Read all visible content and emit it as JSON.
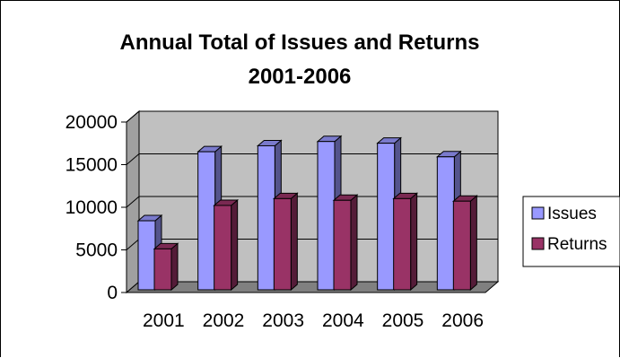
{
  "chart_data": {
    "type": "bar",
    "title": "Annual Total of Issues and Returns",
    "subtitle": "2001-2006",
    "categories": [
      "2001",
      "2002",
      "2003",
      "2004",
      "2005",
      "2006"
    ],
    "series": [
      {
        "name": "Issues",
        "values": [
          8100,
          16200,
          16900,
          17400,
          17200,
          15600
        ]
      },
      {
        "name": "Returns",
        "values": [
          4800,
          9900,
          10700,
          10500,
          10700,
          10400
        ]
      }
    ],
    "ylim": [
      0,
      20000
    ],
    "yticks": [
      "0",
      "5000",
      "10000",
      "15000",
      "20000"
    ],
    "grid": true,
    "three_d": true,
    "legend_position": "right",
    "colors": {
      "Issues": "#9999ff",
      "Returns": "#993366",
      "wall": "#c0c0c0",
      "floor": "#808080"
    }
  }
}
